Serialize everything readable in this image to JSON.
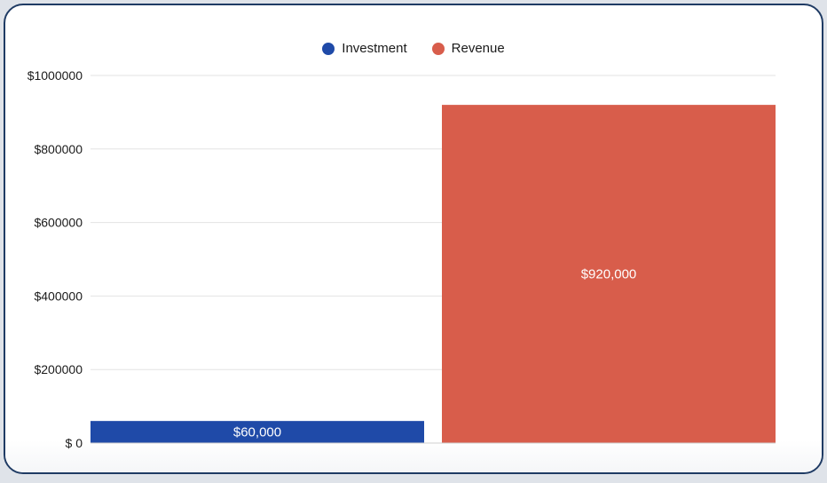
{
  "chart_data": {
    "type": "bar",
    "categories": [
      "Investment",
      "Revenue"
    ],
    "values": [
      60000,
      920000
    ],
    "value_labels": [
      "$60,000",
      "$920,000"
    ],
    "colors": [
      "#1f4aa8",
      "#d85d4b"
    ],
    "ylim": [
      0,
      1000000
    ],
    "ytick_values": [
      0,
      200000,
      400000,
      600000,
      800000,
      1000000
    ],
    "ytick_labels": [
      "$ 0",
      "$200000",
      "$400000",
      "$600000",
      "$800000",
      "$1000000"
    ],
    "grid": true,
    "legend_position": "top-center",
    "legend": [
      {
        "name": "Investment",
        "color": "#1f4aa8"
      },
      {
        "name": "Revenue",
        "color": "#d85d4b"
      }
    ]
  }
}
